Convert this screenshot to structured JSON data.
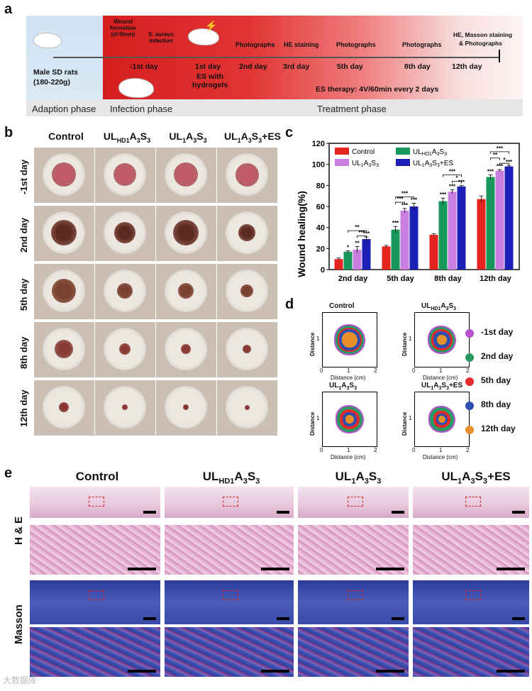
{
  "panel_labels": {
    "a": "a",
    "b": "b",
    "c": "c",
    "d": "d",
    "e": "e"
  },
  "panel_a": {
    "adaption_left_text": "Male SD rats",
    "adaption_left_text2": "(180-220g)",
    "phases": [
      "Adaption phase",
      "Infection phase",
      "Treatment phase"
    ],
    "wound_formation": [
      "Wound",
      "formation",
      "(d=8mm)"
    ],
    "s_aureus": [
      "S. aureus",
      "infection"
    ],
    "events_top": [
      "Photographs",
      "HE staining",
      "Photographs",
      "Photographs",
      "HE, Masson staining",
      "& Photographs"
    ],
    "days": [
      "-1st day",
      "1st day",
      "2nd day",
      "3rd day",
      "5th day",
      "8th day",
      "12th day"
    ],
    "es_hydrogel": [
      "ES with",
      "hydrogels"
    ],
    "es_therapy": "ES therapy:  4V/60min every 2 days"
  },
  "panel_b": {
    "columns": [
      "Control",
      "UL_HD1A3S3",
      "UL1A3S3",
      "UL1A3S3+ES"
    ],
    "rows": [
      "-1st day",
      "2nd day",
      "5th day",
      "8th day",
      "12th day"
    ]
  },
  "panel_d": {
    "subplots": [
      "Control",
      "UL_HD1A3S3",
      "UL1A3S3",
      "UL1A3S3+ES"
    ],
    "xlabel": "Distance (cm)",
    "ylabel": "Distance",
    "xticks": [
      "0",
      "1",
      "2"
    ],
    "yticks": [
      "1"
    ],
    "legend": [
      {
        "label": "-1st day",
        "color": "#b452d0"
      },
      {
        "label": "2nd day",
        "color": "#2a9a63"
      },
      {
        "label": "5th day",
        "color": "#e22a2a"
      },
      {
        "label": "8th day",
        "color": "#2a4fb0"
      },
      {
        "label": "12th day",
        "color": "#e8912c"
      }
    ]
  },
  "panel_e": {
    "columns": [
      "Control",
      "UL_HD1A3S3",
      "UL1A3S3",
      "UL1A3S3+ES"
    ],
    "rows": [
      "H & E",
      "Masson"
    ]
  },
  "watermark": "大数据库",
  "chart_data": {
    "type": "bar",
    "ylabel": "Wound healing(%)",
    "ylim": [
      0,
      120
    ],
    "yticks": [
      0,
      20,
      40,
      60,
      80,
      100,
      120
    ],
    "categories": [
      "2nd day",
      "5th day",
      "8th day",
      "12th day"
    ],
    "legend_placement": "top-left",
    "series": [
      {
        "name": "Control",
        "color": "#e5231f",
        "values": [
          10,
          22,
          33,
          67
        ],
        "errors": [
          1,
          1,
          1,
          3
        ],
        "sig": [
          "",
          "",
          "",
          ""
        ]
      },
      {
        "name": "UL_HD1A3S3",
        "color": "#17975a",
        "values": [
          17,
          38,
          65,
          88
        ],
        "errors": [
          1,
          3,
          3,
          2
        ],
        "sig": [
          "*",
          "***",
          "***",
          "***"
        ]
      },
      {
        "name": "UL1A3S3",
        "color": "#c97ee0",
        "values": [
          19,
          56,
          74,
          94
        ],
        "errors": [
          3,
          2,
          2,
          1
        ],
        "sig": [
          "**",
          "***",
          "***",
          "***"
        ]
      },
      {
        "name": "UL1A3S3+ES",
        "color": "#1c1fb6",
        "values": [
          29,
          60,
          79,
          98
        ],
        "errors": [
          2,
          3,
          1,
          1
        ],
        "sig": [
          "***",
          "***",
          "***",
          "***"
        ]
      }
    ],
    "brackets": [
      {
        "group": 0,
        "from": 1,
        "to": 3,
        "label": "**",
        "y": 37
      },
      {
        "group": 0,
        "from": 2,
        "to": 3,
        "label": "***",
        "y": 32
      },
      {
        "group": 1,
        "from": 1,
        "to": 3,
        "label": "***",
        "y": 69
      },
      {
        "group": 1,
        "from": 1,
        "to": 2,
        "label": "***",
        "y": 64
      },
      {
        "group": 2,
        "from": 1,
        "to": 3,
        "label": "***",
        "y": 90
      },
      {
        "group": 2,
        "from": 2,
        "to": 3,
        "label": "*",
        "y": 84
      },
      {
        "group": 3,
        "from": 1,
        "to": 3,
        "label": "***",
        "y": 112
      },
      {
        "group": 3,
        "from": 1,
        "to": 2,
        "label": "**",
        "y": 106
      },
      {
        "group": 3,
        "from": 2,
        "to": 3,
        "label": "*",
        "y": 101
      }
    ]
  }
}
